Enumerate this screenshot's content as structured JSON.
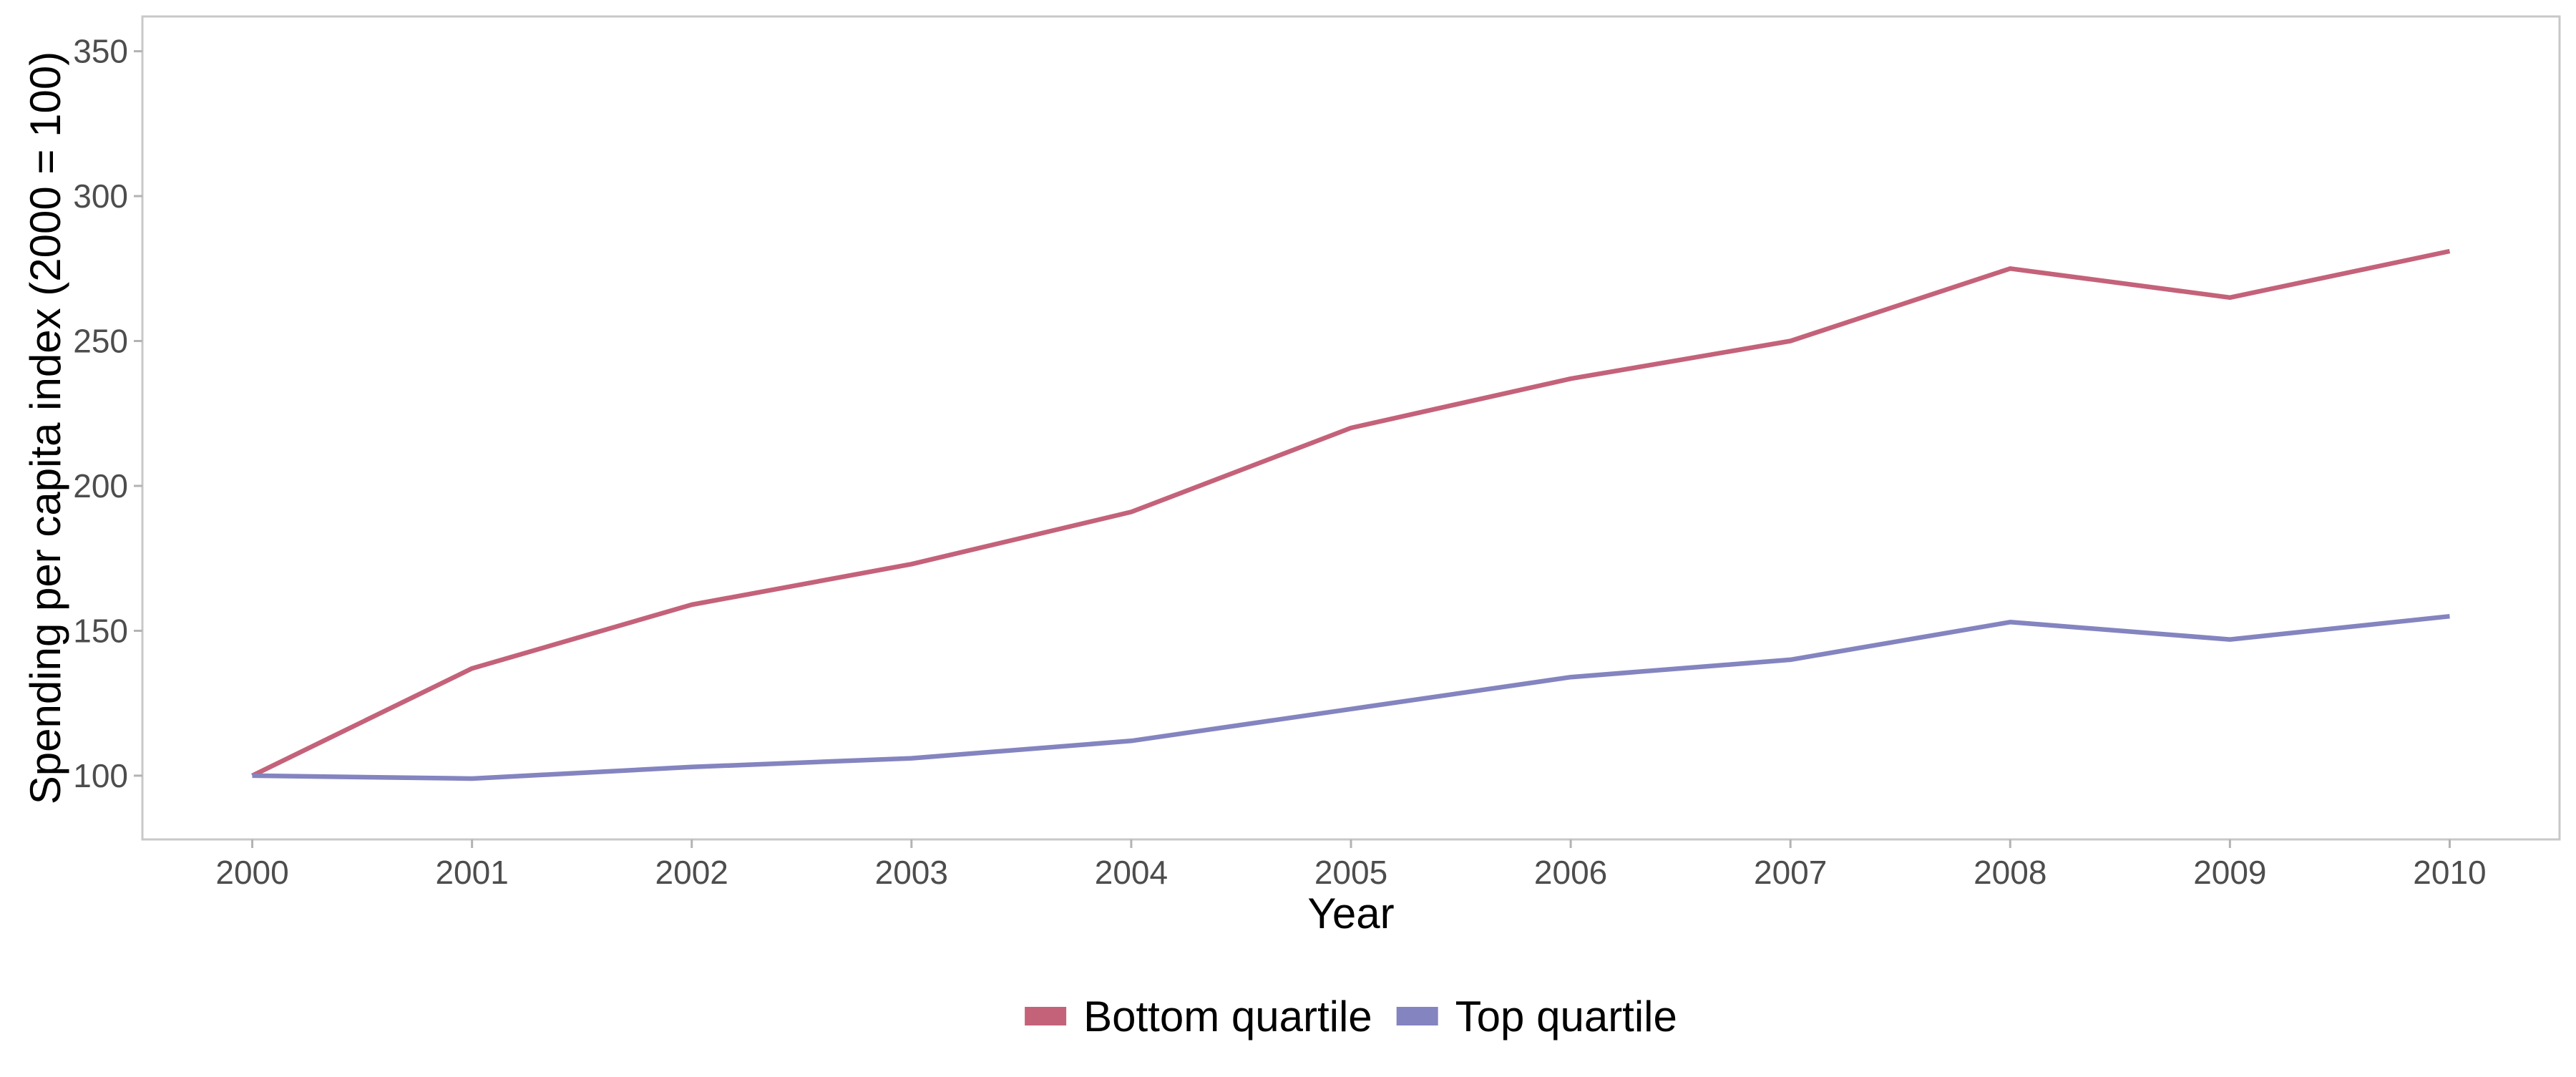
{
  "chart_data": {
    "type": "line",
    "title": "",
    "xlabel": "Year",
    "ylabel": "Spending per capita index (2000 = 100)",
    "x": [
      2000,
      2001,
      2002,
      2003,
      2004,
      2005,
      2006,
      2007,
      2008,
      2009,
      2010
    ],
    "series": [
      {
        "name": "Bottom quartile",
        "color": "#c4627a",
        "values": [
          100,
          137,
          159,
          173,
          191,
          220,
          237,
          250,
          275,
          265,
          281
        ]
      },
      {
        "name": "Top quartile",
        "color": "#8484c0",
        "values": [
          100,
          99,
          103,
          106,
          112,
          123,
          134,
          140,
          153,
          147,
          155
        ]
      }
    ],
    "xlim": [
      1999.5,
      2010.5
    ],
    "ylim": [
      78,
      362
    ],
    "yticks": [
      100,
      150,
      200,
      250,
      300,
      350
    ],
    "xticks": [
      2000,
      2001,
      2002,
      2003,
      2004,
      2005,
      2006,
      2007,
      2008,
      2009,
      2010
    ],
    "grid": false,
    "legend_position": "bottom",
    "panel_border_color": "#c8c8c8"
  }
}
